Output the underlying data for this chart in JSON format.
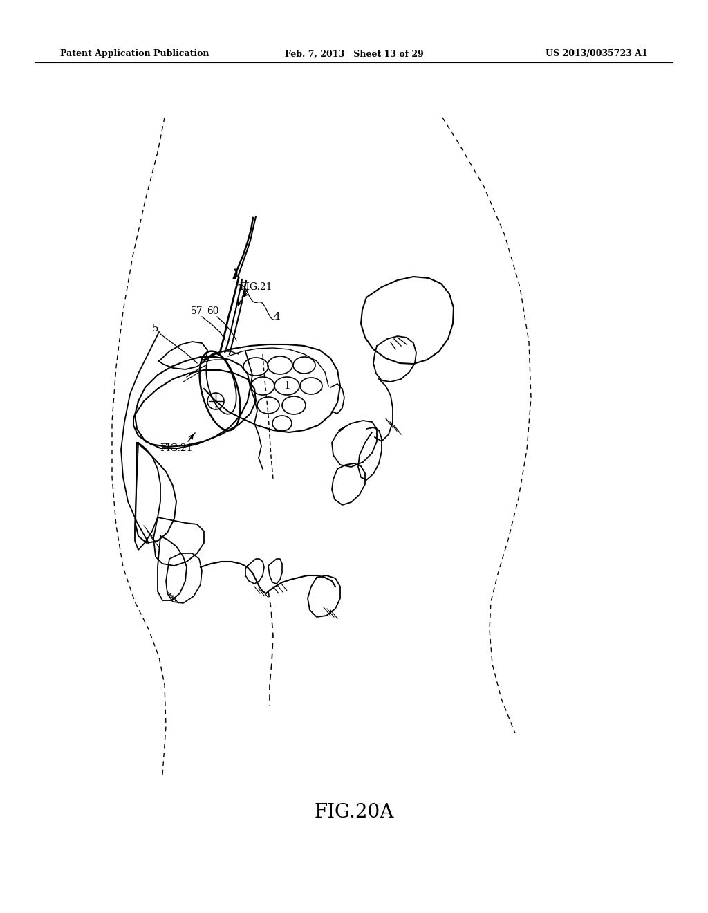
{
  "background_color": "#ffffff",
  "header_left": "Patent Application Publication",
  "header_center": "Feb. 7, 2013   Sheet 13 of 29",
  "header_right": "US 2013/0035723 A1",
  "figure_label": "FIG.20A"
}
